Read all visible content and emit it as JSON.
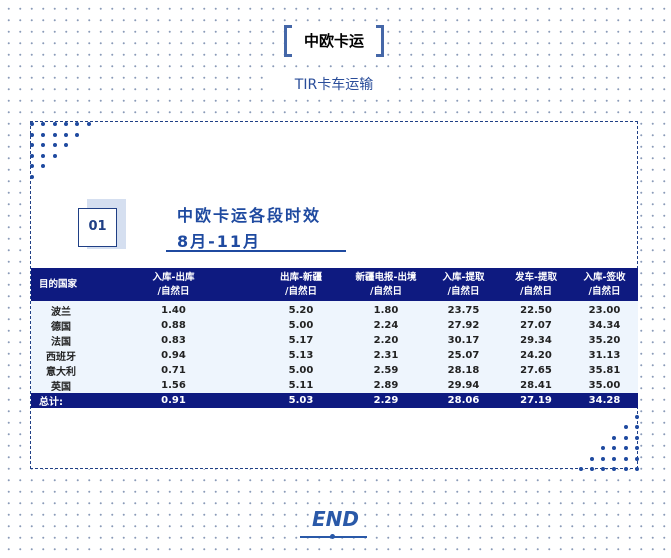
{
  "header": {
    "title": "中欧卡运",
    "subtitle": "TIR卡车运输"
  },
  "section": {
    "number": "01",
    "title": "中欧卡运各段时效",
    "period": "8月-11月"
  },
  "table": {
    "columns": [
      [
        "目的国家",
        ""
      ],
      [
        "入库-出库",
        "/自然日"
      ],
      [
        "出库-新疆",
        "/自然日"
      ],
      [
        "新疆电报-出境",
        "/自然日"
      ],
      [
        "入库-提取",
        "/自然日"
      ],
      [
        "发车-提取",
        "/自然日"
      ],
      [
        "入库-签收",
        "/自然日"
      ]
    ],
    "rows": [
      [
        "波兰",
        "1.40",
        "5.20",
        "1.80",
        "23.75",
        "22.50",
        "23.00"
      ],
      [
        "德国",
        "0.88",
        "5.00",
        "2.24",
        "27.92",
        "27.07",
        "34.34"
      ],
      [
        "法国",
        "0.83",
        "5.17",
        "2.20",
        "30.17",
        "29.34",
        "35.20"
      ],
      [
        "西班牙",
        "0.94",
        "5.13",
        "2.31",
        "25.07",
        "24.20",
        "31.13"
      ],
      [
        "意大利",
        "0.71",
        "5.00",
        "2.59",
        "28.18",
        "27.65",
        "35.81"
      ],
      [
        "英国",
        "1.56",
        "5.11",
        "2.89",
        "29.94",
        "28.41",
        "35.00"
      ]
    ],
    "total": [
      "总计:",
      "0.91",
      "5.03",
      "2.29",
      "28.06",
      "27.19",
      "34.28"
    ]
  },
  "footer": {
    "end": "END"
  },
  "colors": {
    "accent": "#1f4aa0",
    "table_header": "#0e1a80",
    "row_bg": "#eef5fd"
  }
}
